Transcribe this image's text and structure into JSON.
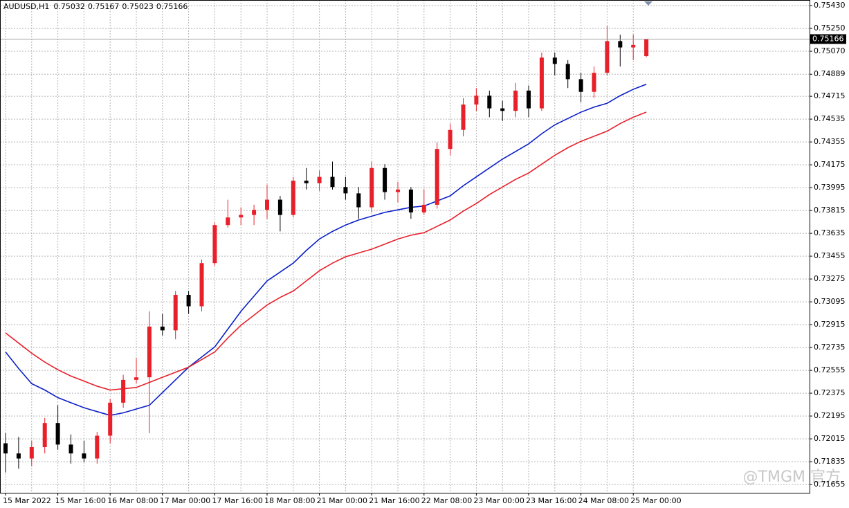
{
  "chart_data": {
    "type": "candlestick",
    "title": "AUDUSD,H1",
    "last_bar": {
      "open": 0.75032,
      "high": 0.75167,
      "low": 0.75023,
      "close": 0.75166
    },
    "current_price": 0.75166,
    "watermark": "@TMGM 官方",
    "up_color": "#e8202a",
    "down_color": "#000000",
    "grid": true,
    "categories": [
      "15 Mar 2022",
      null,
      null,
      null,
      "15 Mar 16:00",
      null,
      null,
      null,
      "16 Mar 08:00",
      null,
      null,
      null,
      "17 Mar 00:00",
      null,
      null,
      null,
      "17 Mar 16:00",
      null,
      null,
      null,
      "18 Mar 08:00",
      null,
      null,
      null,
      "21 Mar 00:00",
      null,
      null,
      null,
      "21 Mar 16:00",
      null,
      null,
      null,
      "22 Mar 08:00",
      null,
      null,
      null,
      "23 Mar 00:00",
      null,
      null,
      null,
      "23 Mar 16:00",
      null,
      null,
      null,
      "24 Mar 08:00",
      null,
      null,
      null,
      "25 Mar 00:00",
      null
    ],
    "open": [
      0.7198,
      0.719,
      0.7186,
      0.7195,
      0.7214,
      0.7197,
      0.719,
      0.7186,
      0.7204,
      0.723,
      0.7248,
      0.725,
      0.729,
      0.7287,
      0.7315,
      0.7306,
      0.734,
      0.737,
      0.7376,
      0.7378,
      0.7382,
      0.739,
      0.7378,
      0.7405,
      0.7403,
      0.7408,
      0.74,
      0.7395,
      0.7384,
      0.7415,
      0.7396,
      0.7398,
      0.738,
      0.7386,
      0.743,
      0.7445,
      0.7465,
      0.7472,
      0.7462,
      0.746,
      0.7476,
      0.7462,
      0.7502,
      0.7497,
      0.7485,
      0.7475,
      0.749,
      0.7515,
      0.751,
      0.75032
    ],
    "high": [
      0.7206,
      0.7203,
      0.72,
      0.7218,
      0.7228,
      0.7205,
      0.72,
      0.7207,
      0.7233,
      0.7252,
      0.7265,
      0.7302,
      0.73,
      0.7318,
      0.7318,
      0.7343,
      0.7372,
      0.739,
      0.7384,
      0.7386,
      0.7402,
      0.7393,
      0.7408,
      0.7415,
      0.7413,
      0.742,
      0.7408,
      0.74,
      0.742,
      0.7418,
      0.7404,
      0.74,
      0.7398,
      0.7435,
      0.745,
      0.747,
      0.7478,
      0.7476,
      0.7468,
      0.7482,
      0.748,
      0.7506,
      0.7506,
      0.75,
      0.749,
      0.7495,
      0.7527,
      0.752,
      0.752,
      0.75167
    ],
    "low": [
      0.7175,
      0.7178,
      0.718,
      0.719,
      0.7193,
      0.7182,
      0.7183,
      0.7182,
      0.7198,
      0.7226,
      0.7245,
      0.7206,
      0.7283,
      0.728,
      0.73,
      0.7302,
      0.7338,
      0.7368,
      0.737,
      0.737,
      0.7375,
      0.7365,
      0.7376,
      0.7398,
      0.7397,
      0.7398,
      0.739,
      0.7375,
      0.738,
      0.739,
      0.7388,
      0.7375,
      0.7378,
      0.7383,
      0.7425,
      0.744,
      0.746,
      0.7455,
      0.7452,
      0.7455,
      0.7455,
      0.746,
      0.7488,
      0.7478,
      0.7467,
      0.747,
      0.7488,
      0.7495,
      0.75,
      0.75023
    ],
    "close": [
      0.719,
      0.7186,
      0.7195,
      0.7214,
      0.7197,
      0.719,
      0.7186,
      0.7204,
      0.723,
      0.7248,
      0.725,
      0.729,
      0.7287,
      0.7315,
      0.7306,
      0.734,
      0.737,
      0.7376,
      0.7378,
      0.7382,
      0.739,
      0.7378,
      0.7405,
      0.7403,
      0.7408,
      0.74,
      0.7395,
      0.7384,
      0.7415,
      0.7396,
      0.7398,
      0.738,
      0.7386,
      0.743,
      0.7445,
      0.7465,
      0.7472,
      0.7462,
      0.746,
      0.7476,
      0.7462,
      0.7502,
      0.7497,
      0.7485,
      0.7475,
      0.749,
      0.7515,
      0.751,
      0.7512,
      0.75166
    ],
    "moving_averages": [
      {
        "color": "#0a1ec8",
        "values": [
          0.727,
          0.7257,
          0.7245,
          0.724,
          0.7234,
          0.723,
          0.7226,
          0.7223,
          0.722,
          0.7222,
          0.7225,
          0.7228,
          0.7238,
          0.7248,
          0.7258,
          0.7266,
          0.7274,
          0.7288,
          0.7302,
          0.7314,
          0.7326,
          0.7333,
          0.734,
          0.735,
          0.7359,
          0.7365,
          0.737,
          0.7374,
          0.7377,
          0.738,
          0.7382,
          0.7384,
          0.7385,
          0.7389,
          0.7393,
          0.7401,
          0.7408,
          0.7415,
          0.7422,
          0.7428,
          0.7434,
          0.7442,
          0.7449,
          0.7454,
          0.7459,
          0.7463,
          0.7466,
          0.7472,
          0.7477,
          0.7481
        ]
      },
      {
        "color": "#e8202a",
        "values": [
          0.7285,
          0.7277,
          0.7269,
          0.7262,
          0.7256,
          0.7251,
          0.7247,
          0.7243,
          0.724,
          0.7241,
          0.7242,
          0.7246,
          0.725,
          0.7254,
          0.7258,
          0.7264,
          0.727,
          0.7281,
          0.7291,
          0.7299,
          0.7307,
          0.7313,
          0.7318,
          0.7326,
          0.7334,
          0.734,
          0.7345,
          0.7348,
          0.7351,
          0.7355,
          0.7359,
          0.7362,
          0.7364,
          0.7369,
          0.7374,
          0.7381,
          0.7387,
          0.7394,
          0.74,
          0.7406,
          0.7411,
          0.7418,
          0.7425,
          0.7431,
          0.7436,
          0.744,
          0.7444,
          0.745,
          0.7455,
          0.7459
        ]
      }
    ],
    "ylim": [
      0.7159,
      0.75474
    ],
    "yticks": [
      {
        "value": 0.7543,
        "label": "0.75430"
      },
      {
        "value": 0.7525,
        "label": "0.75250"
      },
      {
        "value": 0.7507,
        "label": "0.75070"
      },
      {
        "value": 0.74889,
        "label": "0.74889"
      },
      {
        "value": 0.74715,
        "label": "0.74715"
      },
      {
        "value": 0.74535,
        "label": "0.74535"
      },
      {
        "value": 0.74355,
        "label": "0.74355"
      },
      {
        "value": 0.74175,
        "label": "0.74175"
      },
      {
        "value": 0.73995,
        "label": "0.73995"
      },
      {
        "value": 0.73815,
        "label": "0.73815"
      },
      {
        "value": 0.73635,
        "label": "0.73635"
      },
      {
        "value": 0.73455,
        "label": "0.73455"
      },
      {
        "value": 0.73275,
        "label": "0.73275"
      },
      {
        "value": 0.73095,
        "label": "0.73095"
      },
      {
        "value": 0.72915,
        "label": "0.72915"
      },
      {
        "value": 0.72735,
        "label": "0.72735"
      },
      {
        "value": 0.72555,
        "label": "0.72555"
      },
      {
        "value": 0.72375,
        "label": "0.72375"
      },
      {
        "value": 0.72195,
        "label": "0.72195"
      },
      {
        "value": 0.72015,
        "label": "0.72015"
      },
      {
        "value": 0.71835,
        "label": "0.71835"
      },
      {
        "value": 0.71655,
        "label": "0.71655"
      }
    ]
  }
}
